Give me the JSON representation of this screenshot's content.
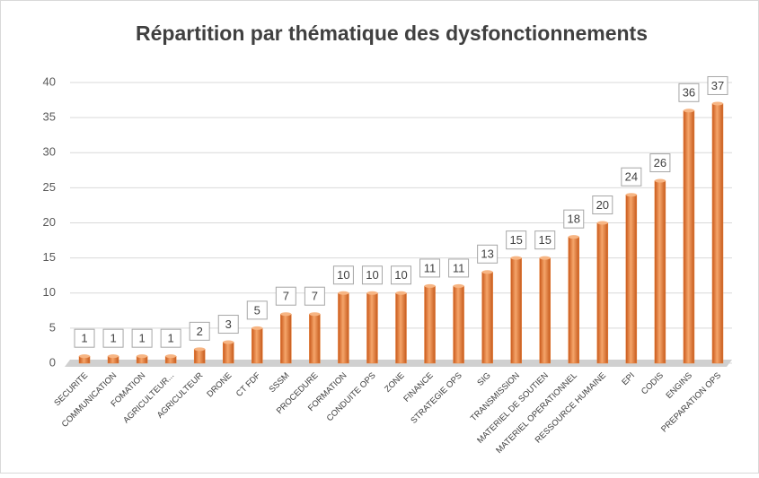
{
  "chart_data": {
    "type": "bar",
    "title": "Répartition par thématique des dysfonctionnements",
    "categories": [
      "SECURITE",
      "COMMUNICATION",
      "FOMATION",
      "AGRICULTEUR...",
      "AGRICULTEUR",
      "DRONE",
      "CT FDF",
      "SSSM",
      "PROCEDURE",
      "FORMATION",
      "CONDUITE OPS",
      "ZONE",
      "FINANCE",
      "STRATEGIE OPS",
      "SIG",
      "TRANSMISSION",
      "MATERIEL DE SOUTIEN",
      "MATERIEL OPERATIONNEL",
      "RESSOURCE HUMAINE",
      "EPI",
      "CODIS",
      "ENGINS",
      "PREPARATION OPS"
    ],
    "values": [
      1,
      1,
      1,
      1,
      2,
      3,
      5,
      7,
      7,
      10,
      10,
      10,
      11,
      11,
      13,
      15,
      15,
      18,
      20,
      24,
      26,
      36,
      37
    ],
    "color": "#e8803a",
    "ylim": [
      0,
      40
    ],
    "yticks": [
      0,
      5,
      10,
      15,
      20,
      25,
      30,
      35,
      40
    ],
    "grid": true
  }
}
